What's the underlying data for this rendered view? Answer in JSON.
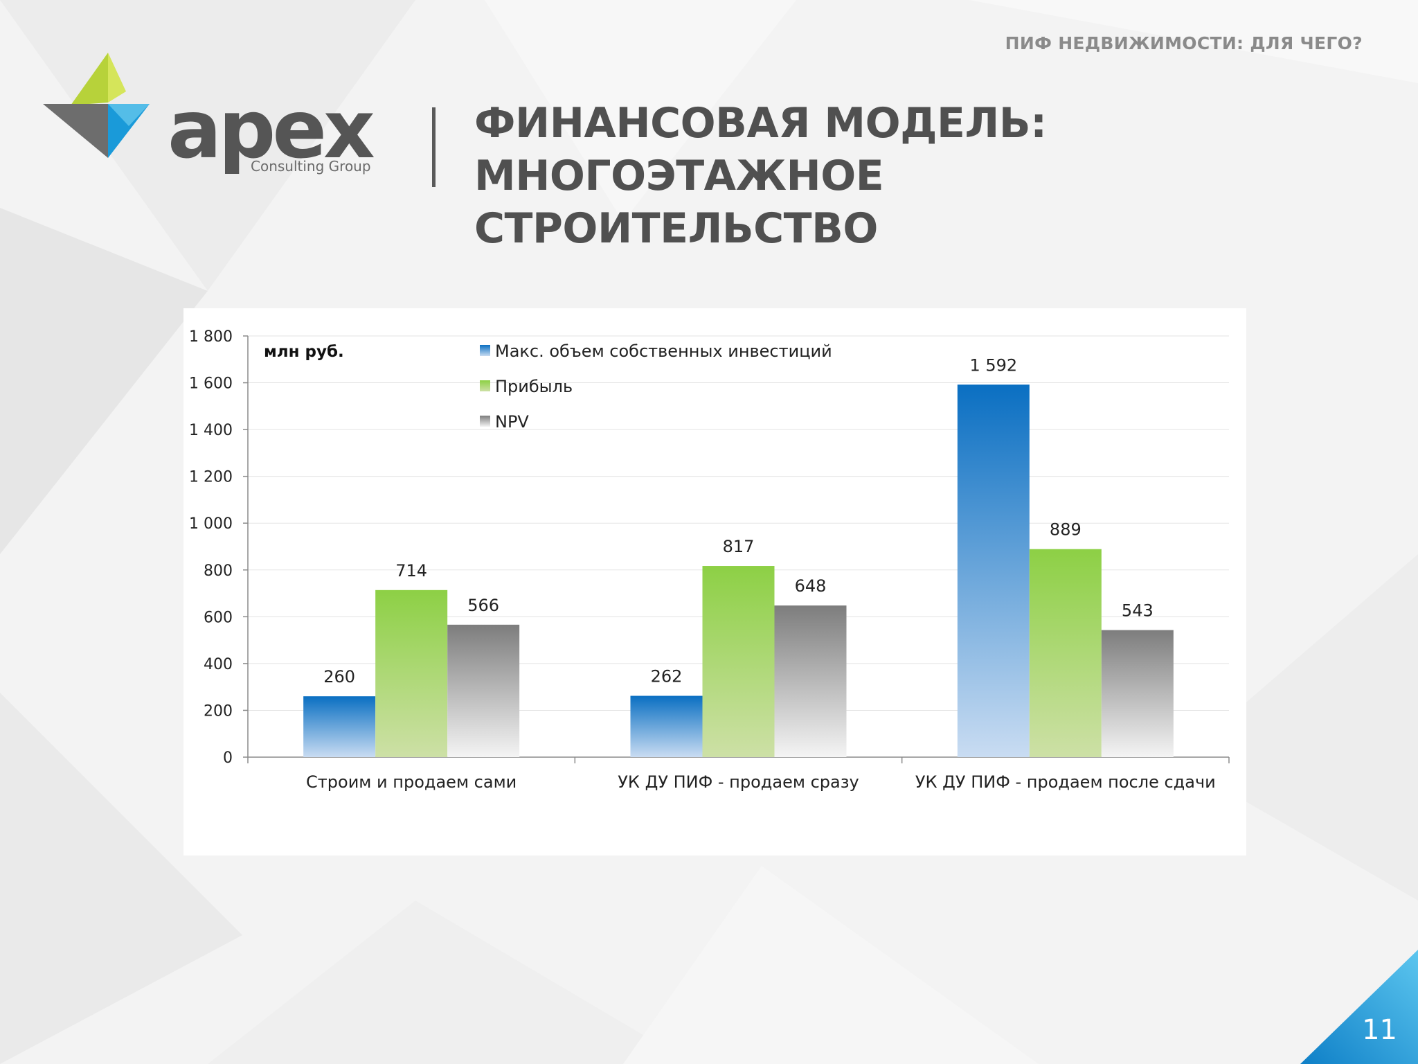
{
  "header": {
    "section_label": "ПИФ НЕДВИЖИМОСТИ: ДЛЯ ЧЕГО?",
    "title_line1": "ФИНАНСОВАЯ МОДЕЛЬ: МНОГОЭТАЖНОЕ",
    "title_line2": "СТРОИТЕЛЬСТВО"
  },
  "logo": {
    "word": "apex",
    "subtitle": "Consulting Group"
  },
  "footer": {
    "page_number": "11"
  },
  "colors": {
    "accent_blue": "#1a8ad4",
    "accent_green": "#8cc63f",
    "text_gray": "#505050"
  },
  "chart_data": {
    "type": "bar",
    "unit_label": "млн руб.",
    "categories": [
      "Строим и продаем сами",
      "УК ДУ ПИФ - продаем сразу",
      "УК ДУ ПИФ - продаем после сдачи"
    ],
    "series": [
      {
        "name": "Макс. объем собственных инвестиций",
        "values": [
          260,
          262,
          1592
        ],
        "labels": [
          "260",
          "262",
          "1 592"
        ],
        "color": "#0a6fc2"
      },
      {
        "name": "Прибыль",
        "values": [
          714,
          817,
          889
        ],
        "labels": [
          "714",
          "817",
          "889"
        ],
        "color": "#8dd045"
      },
      {
        "name": "NPV",
        "values": [
          566,
          648,
          543
        ],
        "labels": [
          "566",
          "648",
          "543"
        ],
        "color": "#7d7d7d"
      }
    ],
    "ylim": [
      0,
      1800
    ],
    "yticks": [
      0,
      200,
      400,
      600,
      800,
      1000,
      1200,
      1400,
      1600,
      1800
    ],
    "ytick_labels": [
      "0",
      "200",
      "400",
      "600",
      "800",
      "1 000",
      "1 200",
      "1 400",
      "1 600",
      "1 800"
    ],
    "grid": true,
    "legend_position": "top-center"
  }
}
